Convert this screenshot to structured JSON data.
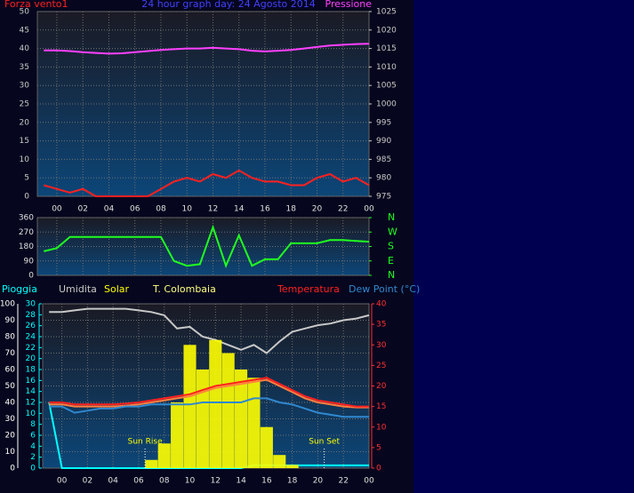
{
  "chart_data": [
    {
      "type": "line",
      "title": "24 hour graph day: 24 Agosto 2014",
      "x": [
        -1,
        0,
        1,
        2,
        3,
        4,
        5,
        6,
        7,
        8,
        9,
        10,
        11,
        12,
        13,
        14,
        15,
        16,
        17,
        18,
        19,
        20,
        21,
        22,
        23,
        24
      ],
      "xlim": [
        -1.5,
        24
      ],
      "xticks": [
        {
          "value": 0,
          "label": "00"
        },
        {
          "value": 2,
          "label": "02"
        },
        {
          "value": 4,
          "label": "04"
        },
        {
          "value": 6,
          "label": "06"
        },
        {
          "value": 8,
          "label": "08"
        },
        10,
        12,
        14,
        16,
        18,
        20,
        22,
        {
          "value": 24,
          "label": "00"
        }
      ],
      "ylim": [
        0,
        50
      ],
      "yticks": [
        0,
        5,
        10,
        15,
        20,
        25,
        30,
        35,
        40,
        45,
        50
      ],
      "y2lim": [
        975,
        1025
      ],
      "y2ticks": [
        975,
        980,
        985,
        990,
        995,
        1000,
        1005,
        1010,
        1015,
        1020,
        1025
      ],
      "grid": true,
      "series": [
        {
          "name": "Forza vento1",
          "color": "#ff2020",
          "values": [
            3,
            2,
            1,
            2,
            0,
            0,
            0,
            0,
            0,
            2,
            4,
            5,
            4,
            6,
            5,
            7,
            5,
            4,
            4,
            3,
            3,
            5,
            6,
            4,
            5,
            3
          ]
        },
        {
          "name": "Pressione",
          "color": "#ff40ff",
          "axis": "y2",
          "values": [
            1014.5,
            1014.5,
            1014.3,
            1014,
            1013.8,
            1013.6,
            1013.7,
            1014,
            1014.3,
            1014.6,
            1014.8,
            1015,
            1015,
            1015.2,
            1015,
            1014.8,
            1014.4,
            1014.2,
            1014.4,
            1014.6,
            1015,
            1015.4,
            1015.8,
            1016,
            1016.2,
            1016.3
          ]
        }
      ]
    },
    {
      "type": "line",
      "x": [
        -1,
        0,
        1,
        2,
        3,
        4,
        5,
        6,
        7,
        8,
        9,
        10,
        11,
        12,
        13,
        14,
        15,
        16,
        17,
        18,
        19,
        20,
        21,
        22,
        23,
        24
      ],
      "xlim": [
        -1.5,
        24
      ],
      "ylim": [
        0,
        360
      ],
      "yticks": [
        0,
        90,
        180,
        270,
        360
      ],
      "y2lim": [
        0,
        360
      ],
      "y2ticks": [
        {
          "value": 360,
          "label": "N"
        },
        {
          "value": 270,
          "label": "W"
        },
        {
          "value": 180,
          "label": "S"
        },
        {
          "value": 90,
          "label": "E"
        },
        {
          "value": 0,
          "label": "N"
        }
      ],
      "grid": true,
      "series": [
        {
          "color": "#20ff20",
          "values": [
            150,
            170,
            240,
            240,
            240,
            240,
            240,
            240,
            240,
            240,
            90,
            60,
            70,
            300,
            60,
            250,
            60,
            100,
            100,
            200,
            200,
            200,
            220,
            220,
            215,
            210
          ]
        }
      ]
    },
    {
      "type": "line",
      "x": [
        -1,
        0,
        1,
        2,
        3,
        4,
        5,
        6,
        7,
        8,
        9,
        10,
        11,
        12,
        13,
        14,
        15,
        16,
        17,
        18,
        19,
        20,
        21,
        22,
        23,
        24
      ],
      "xlim": [
        -1.5,
        24
      ],
      "xticks": [
        {
          "value": 0,
          "label": "00"
        },
        {
          "value": 2,
          "label": "02"
        },
        {
          "value": 4,
          "label": "04"
        },
        {
          "value": 6,
          "label": "06"
        },
        {
          "value": 8,
          "label": "08"
        },
        10,
        12,
        14,
        16,
        18,
        20,
        22,
        {
          "value": 24,
          "label": "00"
        }
      ],
      "ylim": [
        0,
        100
      ],
      "yticks": [
        0,
        10,
        20,
        30,
        40,
        50,
        60,
        70,
        80,
        90,
        100
      ],
      "y3lim": [
        0,
        30
      ],
      "y3ticks": [
        0,
        2,
        4,
        6,
        8,
        10,
        12,
        14,
        16,
        18,
        20,
        22,
        24,
        26,
        28,
        30
      ],
      "y2lim": [
        0,
        40
      ],
      "y2ticks": [
        0,
        5,
        10,
        15,
        20,
        25,
        30,
        35,
        40
      ],
      "grid": true,
      "annotations": [
        {
          "text": "Sun Rise",
          "x": 6.5
        },
        {
          "text": "Sun Set",
          "x": 20.5
        }
      ],
      "series": [
        {
          "name": "Pioggia",
          "color": "#00ffff",
          "axis": "y3",
          "values": [
            12,
            0,
            0,
            0,
            0,
            0,
            0,
            0,
            0,
            0,
            0,
            0,
            0,
            0,
            0,
            0,
            0.5,
            0.5,
            0.5,
            0.5,
            0.5,
            0.5,
            0.5,
            0.5,
            0.5,
            0.5
          ]
        },
        {
          "name": "Umidita",
          "color": "#c8c8c8",
          "values": [
            95,
            95,
            96,
            97,
            97,
            97,
            97,
            96,
            95,
            93,
            85,
            86,
            80,
            78,
            75,
            72,
            75,
            70,
            77,
            83,
            85,
            87,
            88,
            90,
            91,
            93
          ]
        },
        {
          "name": "Solar",
          "color": "#ffff00",
          "type": "bar",
          "values": [
            0,
            0,
            0,
            0,
            0,
            0,
            0,
            0,
            5,
            15,
            40,
            75,
            60,
            78,
            70,
            60,
            55,
            25,
            8,
            2,
            0,
            0,
            0,
            0,
            0,
            0
          ]
        },
        {
          "name": "T. Colombaia",
          "color": "#ff8040",
          "axis": "y2",
          "values": [
            15.5,
            15.5,
            15,
            15,
            15,
            15,
            15.2,
            15.5,
            16,
            16.5,
            17,
            17.5,
            18.5,
            19.5,
            20,
            20.5,
            21,
            21.5,
            20,
            18.5,
            17,
            16,
            15.5,
            15,
            14.8,
            14.8
          ]
        },
        {
          "name": "Temperatura",
          "color": "#ff2020",
          "axis": "y2",
          "values": [
            16,
            16,
            15.5,
            15.5,
            15.5,
            15.5,
            15.7,
            16,
            16.5,
            17,
            17.5,
            18,
            19,
            20,
            20.5,
            21,
            21.5,
            22,
            20.5,
            19,
            17.5,
            16.5,
            16,
            15.5,
            15,
            15
          ]
        },
        {
          "name": "Dew Point (°C)",
          "color": "#3088d0",
          "axis": "y2",
          "values": [
            15,
            15,
            13.5,
            14,
            14.5,
            14.5,
            15,
            15,
            15.5,
            15.5,
            15.5,
            15.5,
            16,
            16,
            16,
            16,
            17,
            17,
            16,
            15.5,
            14.5,
            13.5,
            13,
            12.5,
            12.5,
            12.5
          ]
        }
      ]
    }
  ]
}
